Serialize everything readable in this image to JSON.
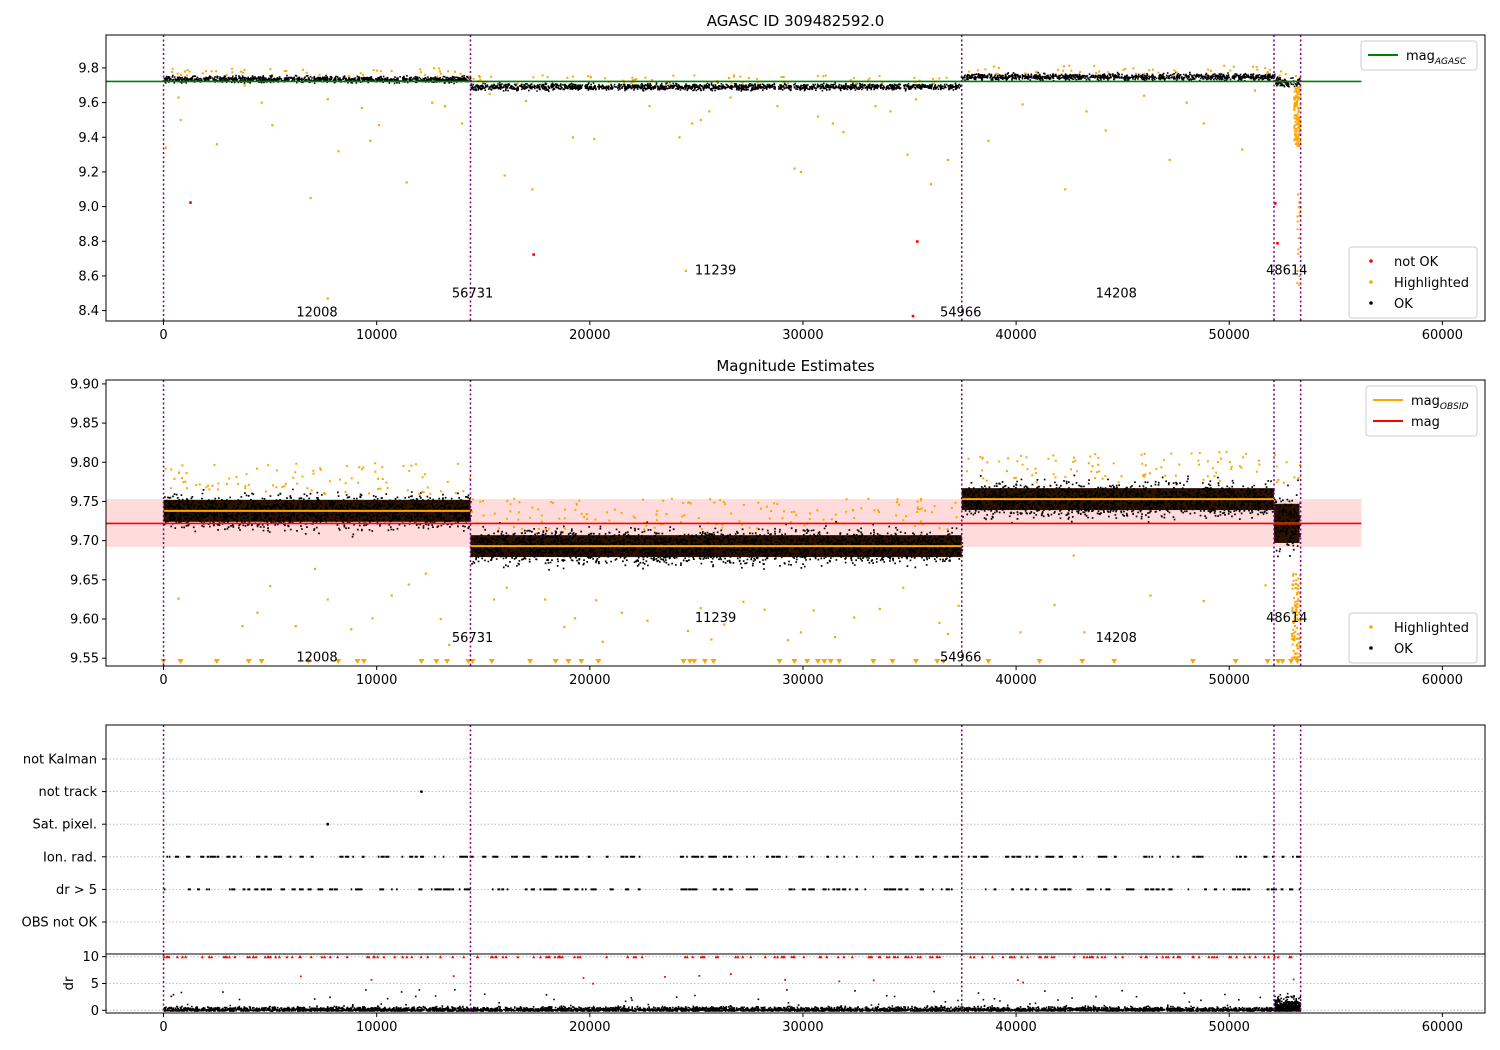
{
  "chart_data": [
    {
      "type": "scatter",
      "title": "AGASC ID 309482592.0",
      "xlim": [
        -2700,
        62000
      ],
      "ylim": [
        8.34,
        9.99
      ],
      "yticks": [
        8.4,
        8.6,
        8.8,
        9.0,
        9.2,
        9.4,
        9.6,
        9.8
      ],
      "xticks": [
        0,
        10000,
        20000,
        30000,
        40000,
        50000,
        60000
      ],
      "grid": false,
      "reference_line": {
        "label": "mag",
        "label_sub": "AGASC",
        "value": 9.722,
        "x_range": [
          -2700,
          56200
        ],
        "color": "#008000"
      },
      "segments": [
        {
          "x": [
            0,
            14400
          ],
          "y_center": 9.738,
          "y_spread": 0.018
        },
        {
          "x": [
            14400,
            37400
          ],
          "y_center": 9.695,
          "y_spread": 0.018
        },
        {
          "x": [
            37400,
            52100
          ],
          "y_center": 9.753,
          "y_spread": 0.018
        },
        {
          "x": [
            52100,
            53300
          ],
          "y_center": 9.722,
          "y_spread": 0.03
        }
      ],
      "highlighted_points": [
        [
          100,
          9.34
        ],
        [
          700,
          9.63
        ],
        [
          800,
          9.5
        ],
        [
          1000,
          9.78
        ],
        [
          2500,
          9.36
        ],
        [
          3800,
          9.7
        ],
        [
          4600,
          9.6
        ],
        [
          5100,
          9.47
        ],
        [
          6900,
          9.05
        ],
        [
          7700,
          9.62
        ],
        [
          7700,
          8.47
        ],
        [
          8200,
          9.32
        ],
        [
          9300,
          9.57
        ],
        [
          9700,
          9.38
        ],
        [
          10100,
          9.47
        ],
        [
          11400,
          9.14
        ],
        [
          12600,
          9.6
        ],
        [
          13200,
          9.58
        ],
        [
          14000,
          9.48
        ],
        [
          15300,
          9.65
        ],
        [
          16000,
          9.18
        ],
        [
          17000,
          9.61
        ],
        [
          17300,
          9.1
        ],
        [
          19200,
          9.4
        ],
        [
          20200,
          9.39
        ],
        [
          22800,
          9.58
        ],
        [
          24200,
          9.4
        ],
        [
          24500,
          8.63
        ],
        [
          24800,
          9.48
        ],
        [
          25200,
          9.5
        ],
        [
          25600,
          9.55
        ],
        [
          26600,
          9.63
        ],
        [
          28800,
          9.58
        ],
        [
          29600,
          9.22
        ],
        [
          29900,
          9.2
        ],
        [
          30700,
          9.52
        ],
        [
          31400,
          9.48
        ],
        [
          31900,
          9.43
        ],
        [
          33400,
          9.58
        ],
        [
          34100,
          9.55
        ],
        [
          34900,
          9.3
        ],
        [
          35300,
          9.62
        ],
        [
          36000,
          9.13
        ],
        [
          36800,
          9.27
        ],
        [
          38700,
          9.38
        ],
        [
          40300,
          9.59
        ],
        [
          42300,
          9.1
        ],
        [
          43300,
          9.55
        ],
        [
          44200,
          9.44
        ],
        [
          46000,
          9.64
        ],
        [
          47200,
          9.27
        ],
        [
          48000,
          9.6
        ],
        [
          48800,
          9.48
        ],
        [
          50600,
          9.33
        ],
        [
          51200,
          9.67
        ]
      ],
      "not_ok_points": [
        [
          1250,
          9.025
        ],
        [
          17350,
          8.725
        ],
        [
          35350,
          8.8
        ],
        [
          35150,
          8.37
        ],
        [
          52150,
          9.02
        ],
        [
          52250,
          8.79
        ]
      ],
      "dashed_lines": [
        0,
        14400,
        37450,
        52100,
        53350
      ],
      "segment_labels": [
        {
          "text": "12008",
          "x": 7200,
          "y": 8.39
        },
        {
          "text": "56731",
          "x": 14500,
          "y": 8.5
        },
        {
          "text": "11239",
          "x": 25900,
          "y": 8.63
        },
        {
          "text": "54966",
          "x": 37400,
          "y": 8.39
        },
        {
          "text": "14208",
          "x": 44700,
          "y": 8.5
        },
        {
          "text": "48614",
          "x": 52700,
          "y": 8.63
        }
      ],
      "legend_top": {
        "placement": "upper-right",
        "entries": [
          {
            "label": "mag",
            "sub": "AGASC",
            "color": "#008000",
            "kind": "line"
          }
        ]
      },
      "legend_bottom": {
        "placement": "lower-right",
        "entries": [
          {
            "label": "not OK",
            "color": "#ff0000",
            "kind": "dot"
          },
          {
            "label": "Highlighted",
            "color": "#ffa500",
            "kind": "dot"
          },
          {
            "label": "OK",
            "color": "#000000",
            "kind": "dot"
          }
        ]
      }
    },
    {
      "type": "scatter",
      "title": "Magnitude Estimates",
      "xlim": [
        -2700,
        62000
      ],
      "ylim": [
        9.54,
        9.905
      ],
      "yticks": [
        9.55,
        9.6,
        9.65,
        9.7,
        9.75,
        9.8,
        9.85,
        9.9
      ],
      "xticks": [
        0,
        10000,
        20000,
        30000,
        40000,
        50000,
        60000
      ],
      "grid": false,
      "mag_line": {
        "label": "mag",
        "value": 9.722,
        "x_range": [
          -2700,
          56200
        ],
        "color": "#ff0000"
      },
      "mag_band": {
        "y": [
          9.692,
          9.753
        ],
        "x_range": [
          -2700,
          56200
        ],
        "color": "#ffcccc"
      },
      "obsid_segments": [
        {
          "x": [
            0,
            14400
          ],
          "mag": 9.738,
          "spread": 0.014
        },
        {
          "x": [
            14400,
            37450
          ],
          "mag": 9.693,
          "spread": 0.014
        },
        {
          "x": [
            37450,
            52100
          ],
          "mag": 9.753,
          "spread": 0.014
        },
        {
          "x": [
            52100,
            53300
          ],
          "mag": 9.722,
          "spread": 0.025
        }
      ],
      "segment_labels": [
        {
          "text": "12008",
          "x": 7200,
          "y": 9.551
        },
        {
          "text": "56731",
          "x": 14500,
          "y": 9.576
        },
        {
          "text": "11239",
          "x": 25900,
          "y": 9.601
        },
        {
          "text": "54966",
          "x": 37400,
          "y": 9.551
        },
        {
          "text": "14208",
          "x": 44700,
          "y": 9.576
        },
        {
          "text": "48614",
          "x": 52700,
          "y": 9.601
        }
      ],
      "highlighted_outliers": [
        [
          700,
          9.626
        ],
        [
          3700,
          9.591
        ],
        [
          4400,
          9.608
        ],
        [
          5000,
          9.642
        ],
        [
          6200,
          9.591
        ],
        [
          7100,
          9.664
        ],
        [
          7700,
          9.625
        ],
        [
          8800,
          9.587
        ],
        [
          9800,
          9.601
        ],
        [
          10700,
          9.63
        ],
        [
          11500,
          9.644
        ],
        [
          12300,
          9.658
        ],
        [
          13000,
          9.6
        ],
        [
          13400,
          9.567
        ],
        [
          15500,
          9.625
        ],
        [
          16100,
          9.64
        ],
        [
          17900,
          9.625
        ],
        [
          18800,
          9.59
        ],
        [
          19300,
          9.601
        ],
        [
          20300,
          9.624
        ],
        [
          20600,
          9.571
        ],
        [
          21500,
          9.608
        ],
        [
          22700,
          9.598
        ],
        [
          24600,
          9.585
        ],
        [
          25200,
          9.614
        ],
        [
          25700,
          9.574
        ],
        [
          26300,
          9.593
        ],
        [
          27200,
          9.622
        ],
        [
          28200,
          9.612
        ],
        [
          29300,
          9.573
        ],
        [
          29900,
          9.583
        ],
        [
          30500,
          9.611
        ],
        [
          31500,
          9.577
        ],
        [
          32400,
          9.602
        ],
        [
          33600,
          9.613
        ],
        [
          34700,
          9.64
        ],
        [
          36400,
          9.595
        ],
        [
          36800,
          9.581
        ],
        [
          37300,
          9.617
        ],
        [
          40200,
          9.583
        ],
        [
          41800,
          9.618
        ],
        [
          42700,
          9.681
        ],
        [
          43200,
          9.583
        ],
        [
          46300,
          9.63
        ],
        [
          48800,
          9.623
        ],
        [
          51700,
          9.643
        ]
      ],
      "below_range_x": [
        0,
        800,
        2500,
        4000,
        4600,
        6800,
        8200,
        9100,
        9400,
        12100,
        12800,
        13300,
        14300,
        14500,
        15400,
        17200,
        18400,
        19000,
        19600,
        20400,
        24400,
        24700,
        24900,
        25400,
        25800,
        28900,
        29600,
        30200,
        30700,
        31000,
        31300,
        31700,
        33300,
        34200,
        35300,
        36300,
        36600,
        38700,
        41100,
        43100,
        44600,
        48300,
        50300,
        51800,
        52300,
        52500,
        52900,
        53200
      ],
      "legend_top": {
        "placement": "upper-right",
        "entries": [
          {
            "label": "mag",
            "sub": "OBSID",
            "color": "#ffa500",
            "kind": "line"
          },
          {
            "label": "mag",
            "sub": "",
            "color": "#ff0000",
            "kind": "line"
          }
        ]
      },
      "legend_bottom": {
        "placement": "lower-right",
        "entries": [
          {
            "label": "Highlighted",
            "color": "#ffa500",
            "kind": "dot"
          },
          {
            "label": "OK",
            "color": "#000000",
            "kind": "dot"
          }
        ]
      }
    },
    {
      "type": "scatter",
      "title": "",
      "xlim": [
        -2700,
        62000
      ],
      "categories": [
        "not Kalman",
        "not track",
        "Sat. pixel.",
        "Ion. rad.",
        "dr > 5",
        "OBS not OK"
      ],
      "category_grid": true,
      "flag_points": [
        {
          "category": "not track",
          "x": [
            12100
          ]
        },
        {
          "category": "Sat. pixel.",
          "x": [
            7700
          ]
        },
        {
          "category": "Ion. rad.",
          "clusters": [
            [
              0,
              14400
            ],
            [
              14400,
              22500
            ],
            [
              24200,
              37400
            ],
            [
              37600,
              53300
            ]
          ]
        },
        {
          "category": "dr > 5",
          "clusters": [
            [
              0,
              14400
            ],
            [
              14400,
              22500
            ],
            [
              24200,
              37400
            ],
            [
              37600,
              53300
            ]
          ]
        }
      ],
      "dashed_lines": [
        0,
        14400,
        37450,
        52100,
        53350
      ]
    },
    {
      "type": "scatter",
      "title": "",
      "xlim": [
        -2700,
        62000
      ],
      "ylim": [
        -0.5,
        10.5
      ],
      "yticks": [
        0,
        5,
        10
      ],
      "xticks": [
        0,
        10000,
        20000,
        30000,
        40000,
        50000,
        60000
      ],
      "ylabel": "dr",
      "grid": true,
      "clipped_value": 10,
      "dashed_lines": [
        0,
        14400,
        37450,
        52100,
        53350
      ]
    }
  ]
}
